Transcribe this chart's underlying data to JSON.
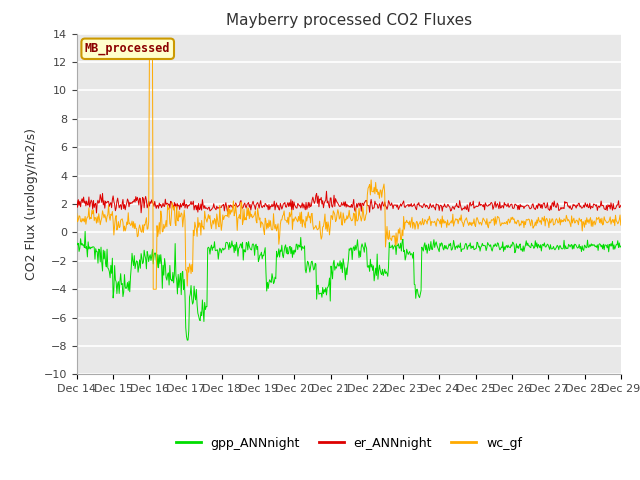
{
  "title": "Mayberry processed CO2 Fluxes",
  "ylabel": "CO2 Flux (urology/m2/s)",
  "ylim": [
    -10,
    14
  ],
  "yticks": [
    -10,
    -8,
    -6,
    -4,
    -2,
    0,
    2,
    4,
    6,
    8,
    10,
    12,
    14
  ],
  "x_labels": [
    "Dec 14",
    "Dec 15",
    "Dec 16",
    "Dec 17",
    "Dec 18",
    "Dec 19",
    "Dec 20",
    "Dec 21",
    "Dec 22",
    "Dec 23",
    "Dec 24",
    "Dec 25",
    "Dec 26",
    "Dec 27",
    "Dec 28",
    "Dec 29"
  ],
  "n_points": 720,
  "gpp_color": "#00dd00",
  "er_color": "#dd0000",
  "wc_color": "#ffaa00",
  "legend_label_gpp": "gpp_ANNnight",
  "legend_label_er": "er_ANNnight",
  "legend_label_wc": "wc_gf",
  "inset_label": "MB_processed",
  "plot_bg_color": "#e8e8e8",
  "fig_bg_color": "#ffffff",
  "grid_color": "#ffffff",
  "title_fontsize": 11,
  "axis_fontsize": 9,
  "tick_fontsize": 8,
  "legend_fontsize": 9
}
